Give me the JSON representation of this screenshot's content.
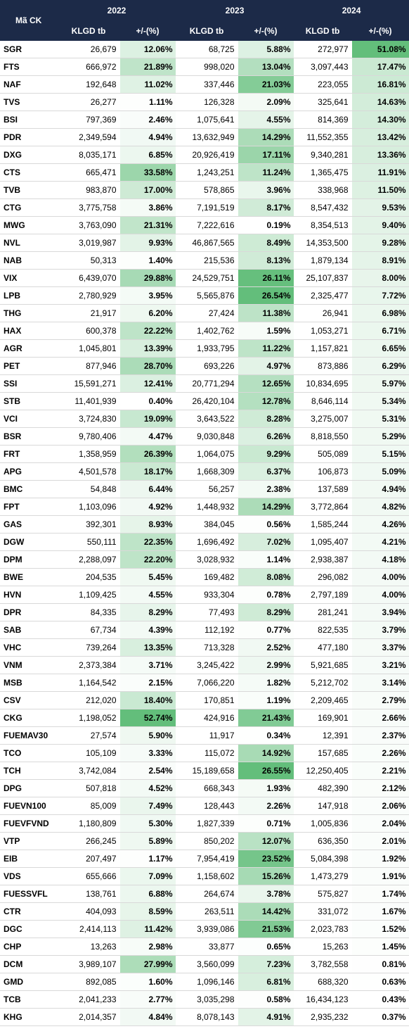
{
  "table": {
    "header": {
      "code": "Mã CK",
      "years": [
        "2022",
        "2023",
        "2024"
      ],
      "subheaders": [
        "KLGD tb",
        "+/-(%)"
      ]
    },
    "rows": [
      [
        "SGR",
        "26,679",
        "12.06%",
        "68,725",
        "5.88%",
        "272,977",
        "51.08%"
      ],
      [
        "FTS",
        "666,972",
        "21.89%",
        "998,020",
        "13.04%",
        "3,097,443",
        "17.47%"
      ],
      [
        "NAF",
        "192,648",
        "11.02%",
        "337,446",
        "21.03%",
        "223,055",
        "16.81%"
      ],
      [
        "TVS",
        "26,277",
        "1.11%",
        "126,328",
        "2.09%",
        "325,641",
        "14.63%"
      ],
      [
        "BSI",
        "797,369",
        "2.46%",
        "1,075,641",
        "4.55%",
        "814,369",
        "14.30%"
      ],
      [
        "PDR",
        "2,349,594",
        "4.94%",
        "13,632,949",
        "14.29%",
        "11,552,355",
        "13.42%"
      ],
      [
        "DXG",
        "8,035,171",
        "6.85%",
        "20,926,419",
        "17.11%",
        "9,340,281",
        "13.36%"
      ],
      [
        "CTS",
        "665,471",
        "33.58%",
        "1,243,251",
        "11.24%",
        "1,365,475",
        "11.91%"
      ],
      [
        "TVB",
        "983,870",
        "17.00%",
        "578,865",
        "3.96%",
        "338,968",
        "11.50%"
      ],
      [
        "CTG",
        "3,775,758",
        "3.86%",
        "7,191,519",
        "8.17%",
        "8,547,432",
        "9.53%"
      ],
      [
        "MWG",
        "3,763,090",
        "21.31%",
        "7,222,616",
        "0.19%",
        "8,354,513",
        "9.40%"
      ],
      [
        "NVL",
        "3,019,987",
        "9.93%",
        "46,867,565",
        "8.49%",
        "14,353,500",
        "9.28%"
      ],
      [
        "NAB",
        "50,313",
        "1.40%",
        "215,536",
        "8.13%",
        "1,879,134",
        "8.91%"
      ],
      [
        "VIX",
        "6,439,070",
        "29.88%",
        "24,529,751",
        "26.11%",
        "25,107,837",
        "8.00%"
      ],
      [
        "LPB",
        "2,780,929",
        "3.95%",
        "5,565,876",
        "26.54%",
        "2,325,477",
        "7.72%"
      ],
      [
        "THG",
        "21,917",
        "6.20%",
        "27,424",
        "11.38%",
        "26,941",
        "6.98%"
      ],
      [
        "HAX",
        "600,378",
        "22.22%",
        "1,402,762",
        "1.59%",
        "1,053,271",
        "6.71%"
      ],
      [
        "AGR",
        "1,045,801",
        "13.39%",
        "1,933,795",
        "11.22%",
        "1,157,821",
        "6.65%"
      ],
      [
        "PET",
        "877,946",
        "28.70%",
        "693,226",
        "4.97%",
        "873,886",
        "6.29%"
      ],
      [
        "SSI",
        "15,591,271",
        "12.41%",
        "20,771,294",
        "12.65%",
        "10,834,695",
        "5.97%"
      ],
      [
        "STB",
        "11,401,939",
        "0.40%",
        "26,420,104",
        "12.78%",
        "8,646,114",
        "5.34%"
      ],
      [
        "VCI",
        "3,724,830",
        "19.09%",
        "3,643,522",
        "8.28%",
        "3,275,007",
        "5.31%"
      ],
      [
        "BSR",
        "9,780,406",
        "4.47%",
        "9,030,848",
        "6.26%",
        "8,818,550",
        "5.29%"
      ],
      [
        "FRT",
        "1,358,959",
        "26.39%",
        "1,064,075",
        "9.29%",
        "505,089",
        "5.15%"
      ],
      [
        "APG",
        "4,501,578",
        "18.17%",
        "1,668,309",
        "6.37%",
        "106,873",
        "5.09%"
      ],
      [
        "BMC",
        "54,848",
        "6.44%",
        "56,257",
        "2.38%",
        "137,589",
        "4.94%"
      ],
      [
        "FPT",
        "1,103,096",
        "4.92%",
        "1,448,932",
        "14.29%",
        "3,772,864",
        "4.82%"
      ],
      [
        "GAS",
        "392,301",
        "8.93%",
        "384,045",
        "0.56%",
        "1,585,244",
        "4.26%"
      ],
      [
        "DGW",
        "550,111",
        "22.35%",
        "1,696,492",
        "7.02%",
        "1,095,407",
        "4.21%"
      ],
      [
        "DPM",
        "2,288,097",
        "22.20%",
        "3,028,932",
        "1.14%",
        "2,938,387",
        "4.18%"
      ],
      [
        "BWE",
        "204,535",
        "5.45%",
        "169,482",
        "8.08%",
        "296,082",
        "4.00%"
      ],
      [
        "HVN",
        "1,109,425",
        "4.55%",
        "933,304",
        "0.78%",
        "2,797,189",
        "4.00%"
      ],
      [
        "DPR",
        "84,335",
        "8.29%",
        "77,493",
        "8.29%",
        "281,241",
        "3.94%"
      ],
      [
        "SAB",
        "67,734",
        "4.39%",
        "112,192",
        "0.77%",
        "822,535",
        "3.79%"
      ],
      [
        "VHC",
        "739,264",
        "13.35%",
        "713,328",
        "2.52%",
        "477,180",
        "3.37%"
      ],
      [
        "VNM",
        "2,373,384",
        "3.71%",
        "3,245,422",
        "2.99%",
        "5,921,685",
        "3.21%"
      ],
      [
        "MSB",
        "1,164,542",
        "2.15%",
        "7,066,220",
        "1.82%",
        "5,212,702",
        "3.14%"
      ],
      [
        "CSV",
        "212,020",
        "18.40%",
        "170,851",
        "1.19%",
        "2,209,465",
        "2.79%"
      ],
      [
        "CKG",
        "1,198,052",
        "52.74%",
        "424,916",
        "21.43%",
        "169,901",
        "2.66%"
      ],
      [
        "FUEMAV30",
        "27,574",
        "5.90%",
        "11,917",
        "0.34%",
        "12,391",
        "2.37%"
      ],
      [
        "TCO",
        "105,109",
        "3.33%",
        "115,072",
        "14.92%",
        "157,685",
        "2.26%"
      ],
      [
        "TCH",
        "3,742,084",
        "2.54%",
        "15,189,658",
        "26.55%",
        "12,250,405",
        "2.21%"
      ],
      [
        "DPG",
        "507,818",
        "4.52%",
        "668,343",
        "1.93%",
        "482,390",
        "2.12%"
      ],
      [
        "FUEVN100",
        "85,009",
        "7.49%",
        "128,443",
        "2.26%",
        "147,918",
        "2.06%"
      ],
      [
        "FUEVFVND",
        "1,180,809",
        "5.30%",
        "1,827,339",
        "0.71%",
        "1,005,836",
        "2.04%"
      ],
      [
        "VTP",
        "266,245",
        "5.89%",
        "850,202",
        "12.07%",
        "636,350",
        "2.01%"
      ],
      [
        "EIB",
        "207,497",
        "1.17%",
        "7,954,419",
        "23.52%",
        "5,084,398",
        "1.92%"
      ],
      [
        "VDS",
        "655,666",
        "7.09%",
        "1,158,602",
        "15.26%",
        "1,473,279",
        "1.91%"
      ],
      [
        "FUESSVFL",
        "138,761",
        "6.88%",
        "264,674",
        "3.78%",
        "575,827",
        "1.74%"
      ],
      [
        "CTR",
        "404,093",
        "8.59%",
        "263,511",
        "14.42%",
        "331,072",
        "1.67%"
      ],
      [
        "DGC",
        "2,414,113",
        "11.42%",
        "3,939,086",
        "21.53%",
        "2,023,783",
        "1.52%"
      ],
      [
        "CHP",
        "13,263",
        "2.98%",
        "33,877",
        "0.65%",
        "15,263",
        "1.45%"
      ],
      [
        "DCM",
        "3,989,107",
        "27.99%",
        "3,560,099",
        "7.23%",
        "3,782,558",
        "0.81%"
      ],
      [
        "GMD",
        "892,085",
        "1.60%",
        "1,096,146",
        "6.81%",
        "688,320",
        "0.63%"
      ],
      [
        "TCB",
        "2,041,233",
        "2.77%",
        "3,035,298",
        "0.58%",
        "16,434,123",
        "0.43%"
      ],
      [
        "KHG",
        "2,014,357",
        "4.84%",
        "8,078,143",
        "4.91%",
        "2,935,232",
        "0.37%"
      ]
    ]
  }
}
